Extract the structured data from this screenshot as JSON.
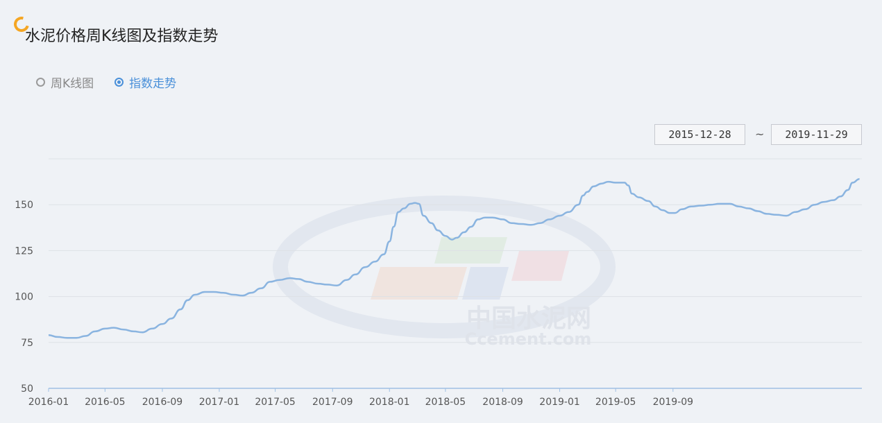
{
  "header": {
    "title": "水泥价格周K线图及指数走势"
  },
  "mode_switch": {
    "options": [
      {
        "label": "周K线图",
        "selected": false
      },
      {
        "label": "指数走势",
        "selected": true
      }
    ]
  },
  "date_range": {
    "start": "2015-12-28",
    "separator": "~",
    "end": "2019-11-29"
  },
  "watermark": {
    "cn": "中国水泥网",
    "en": "Ccement.com"
  },
  "colors": {
    "line": "#8ab4e0",
    "accent": "#4a90d9",
    "logo": "#f5a623",
    "grid": "#dde1e6"
  },
  "chart_data": {
    "type": "line",
    "title": "",
    "xlabel": "",
    "ylabel": "",
    "ylim": [
      50,
      175
    ],
    "yticks": [
      50,
      75,
      100,
      125,
      150
    ],
    "xticks": [
      "2016-01",
      "2016-05",
      "2016-09",
      "2017-01",
      "2017-05",
      "2017-09",
      "2018-01",
      "2018-05",
      "2018-09",
      "2019-01",
      "2019-05",
      "2019-09"
    ],
    "grid": true,
    "series": [
      {
        "name": "",
        "points": [
          [
            "2016-01-01",
            79
          ],
          [
            "2016-01-20",
            78
          ],
          [
            "2016-02-10",
            77.5
          ],
          [
            "2016-03-01",
            77.5
          ],
          [
            "2016-03-20",
            78.5
          ],
          [
            "2016-04-10",
            81
          ],
          [
            "2016-05-01",
            82.5
          ],
          [
            "2016-05-20",
            83
          ],
          [
            "2016-06-10",
            82
          ],
          [
            "2016-07-01",
            81
          ],
          [
            "2016-07-20",
            80.5
          ],
          [
            "2016-08-10",
            82.5
          ],
          [
            "2016-09-01",
            85
          ],
          [
            "2016-09-20",
            88
          ],
          [
            "2016-10-10",
            93
          ],
          [
            "2016-10-25",
            98
          ],
          [
            "2016-11-10",
            101
          ],
          [
            "2016-12-01",
            102.5
          ],
          [
            "2016-12-20",
            102.5
          ],
          [
            "2017-01-10",
            102
          ],
          [
            "2017-02-01",
            101
          ],
          [
            "2017-02-20",
            100.5
          ],
          [
            "2017-03-10",
            102
          ],
          [
            "2017-04-01",
            104.5
          ],
          [
            "2017-04-20",
            108
          ],
          [
            "2017-05-10",
            109
          ],
          [
            "2017-06-01",
            110
          ],
          [
            "2017-06-20",
            109.5
          ],
          [
            "2017-07-10",
            108
          ],
          [
            "2017-08-01",
            107
          ],
          [
            "2017-08-20",
            106.5
          ],
          [
            "2017-09-10",
            106
          ],
          [
            "2017-10-01",
            109
          ],
          [
            "2017-10-20",
            112
          ],
          [
            "2017-11-10",
            116
          ],
          [
            "2017-12-01",
            119
          ],
          [
            "2017-12-20",
            123
          ],
          [
            "2018-01-01",
            130
          ],
          [
            "2018-01-10",
            138
          ],
          [
            "2018-01-20",
            146
          ],
          [
            "2018-02-01",
            148
          ],
          [
            "2018-02-15",
            150.5
          ],
          [
            "2018-02-25",
            151
          ],
          [
            "2018-03-05",
            150.5
          ],
          [
            "2018-03-15",
            144
          ],
          [
            "2018-04-01",
            140
          ],
          [
            "2018-04-15",
            136
          ],
          [
            "2018-05-01",
            133
          ],
          [
            "2018-05-15",
            131
          ],
          [
            "2018-05-25",
            132
          ],
          [
            "2018-06-10",
            135
          ],
          [
            "2018-06-25",
            138
          ],
          [
            "2018-07-10",
            142
          ],
          [
            "2018-07-25",
            143
          ],
          [
            "2018-08-10",
            143
          ],
          [
            "2018-09-01",
            142
          ],
          [
            "2018-09-20",
            140
          ],
          [
            "2018-10-10",
            139.5
          ],
          [
            "2018-11-01",
            139
          ],
          [
            "2018-11-20",
            140
          ],
          [
            "2018-12-10",
            142
          ],
          [
            "2019-01-01",
            144
          ],
          [
            "2019-01-20",
            146
          ],
          [
            "2019-02-10",
            150
          ],
          [
            "2019-02-20",
            155
          ],
          [
            "2019-03-01",
            157
          ],
          [
            "2019-03-15",
            160
          ],
          [
            "2019-04-01",
            161.5
          ],
          [
            "2019-04-15",
            162.5
          ],
          [
            "2019-05-01",
            162
          ],
          [
            "2019-05-20",
            162
          ],
          [
            "2019-05-28",
            160.5
          ],
          [
            "2019-06-05",
            156
          ],
          [
            "2019-06-20",
            154
          ],
          [
            "2019-07-10",
            152
          ],
          [
            "2019-07-25",
            149
          ],
          [
            "2019-08-10",
            147
          ],
          [
            "2019-08-25",
            145.5
          ],
          [
            "2019-09-05",
            145.5
          ],
          [
            "2019-09-20",
            147.5
          ],
          [
            "2019-10-10",
            149
          ],
          [
            "2019-11-01",
            149.5
          ],
          [
            "2019-11-20",
            150
          ],
          [
            "2019-12-10",
            150.5
          ],
          [
            "2020-01-01",
            150.5
          ],
          [
            "2020-01-20",
            149
          ],
          [
            "2020-02-10",
            148
          ],
          [
            "2020-03-01",
            146.5
          ],
          [
            "2020-03-20",
            145
          ],
          [
            "2020-04-10",
            144.5
          ],
          [
            "2020-05-01",
            144
          ],
          [
            "2020-05-20",
            146
          ],
          [
            "2020-06-10",
            147.5
          ],
          [
            "2020-07-01",
            150
          ],
          [
            "2020-07-20",
            151.5
          ],
          [
            "2020-08-10",
            152.5
          ],
          [
            "2020-08-25",
            154.5
          ],
          [
            "2020-09-10",
            158
          ],
          [
            "2020-09-20",
            162
          ],
          [
            "2020-10-05",
            164
          ]
        ]
      }
    ]
  }
}
